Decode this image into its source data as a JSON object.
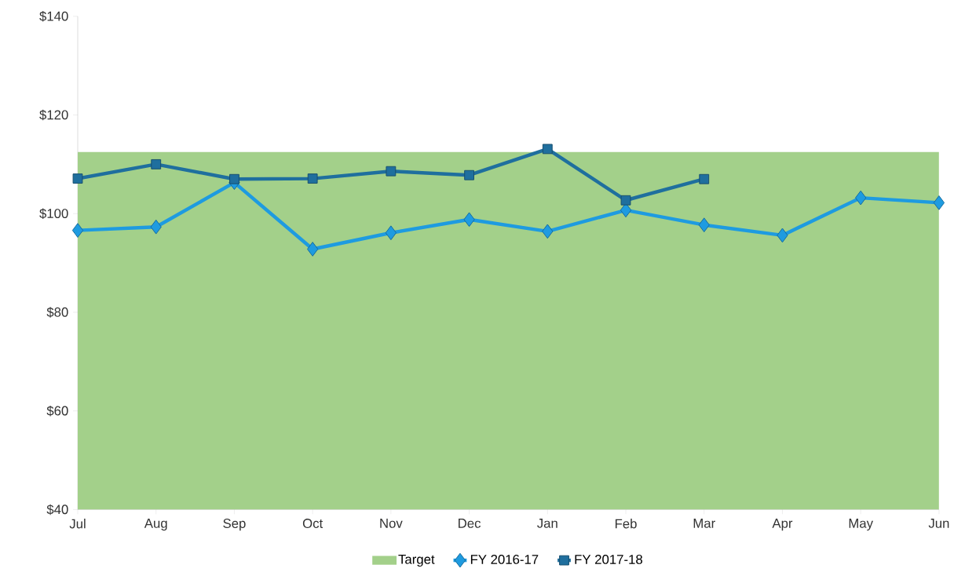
{
  "chart_data": {
    "type": "line",
    "categories": [
      "Jul",
      "Aug",
      "Sep",
      "Oct",
      "Nov",
      "Dec",
      "Jan",
      "Feb",
      "Mar",
      "Apr",
      "May",
      "Jun"
    ],
    "series": [
      {
        "name": "Target",
        "type": "area",
        "color": "#a3d08a",
        "values": [
          112.5,
          112.5,
          112.5,
          112.5,
          112.5,
          112.5,
          112.5,
          112.5,
          112.5,
          112.5,
          112.5,
          112.5
        ]
      },
      {
        "name": "FY 2016-17",
        "color": "#1e9be0",
        "marker": "diamond",
        "values": [
          96.6,
          97.3,
          106.3,
          92.8,
          96.1,
          98.8,
          96.4,
          100.7,
          97.7,
          95.6,
          103.2,
          102.2
        ]
      },
      {
        "name": "FY 2017-18",
        "color": "#1f6f9e",
        "marker": "square",
        "values": [
          107.1,
          110.0,
          107.0,
          107.1,
          108.6,
          107.8,
          113.1,
          102.7,
          107.0,
          null,
          null,
          null
        ]
      }
    ],
    "ylim": [
      40,
      140
    ],
    "yticks": [
      {
        "value": 40,
        "label": "$40"
      },
      {
        "value": 60,
        "label": "$60"
      },
      {
        "value": 80,
        "label": "$80"
      },
      {
        "value": 100,
        "label": "$100"
      },
      {
        "value": 120,
        "label": "$120"
      },
      {
        "value": 140,
        "label": "$140"
      }
    ],
    "grid": false,
    "legend": "bottom",
    "line_style": "solid"
  }
}
